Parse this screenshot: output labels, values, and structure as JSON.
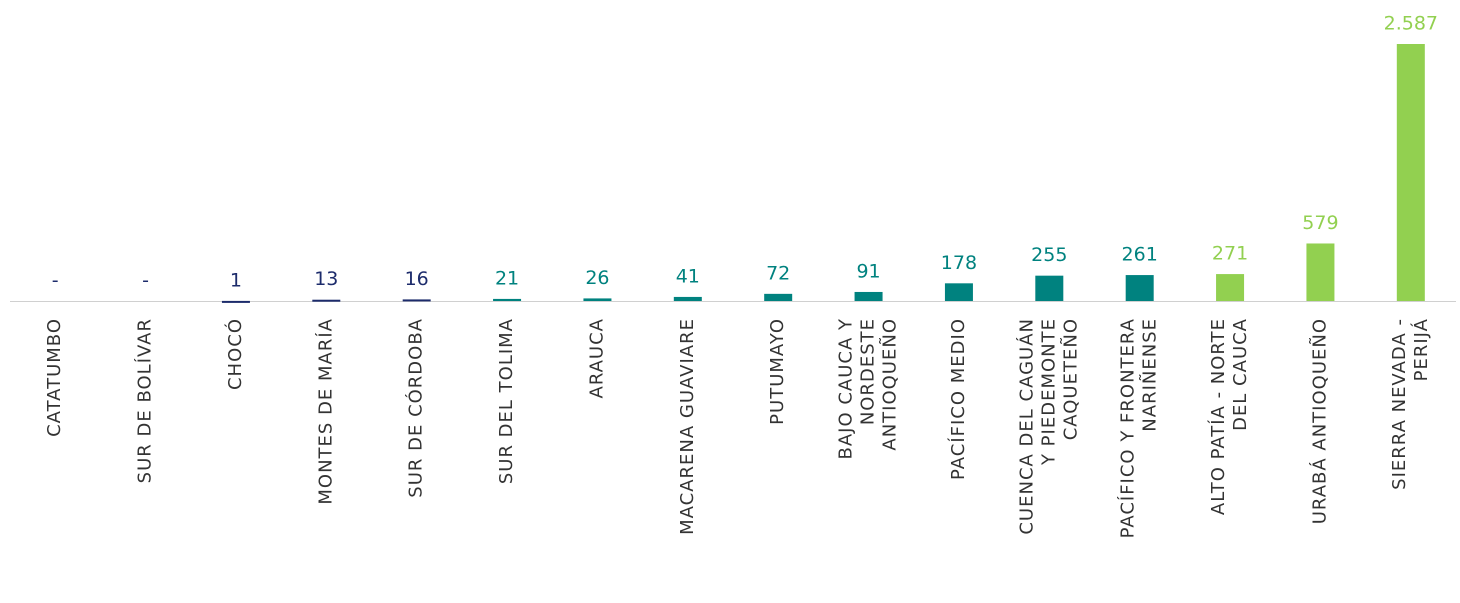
{
  "chart_data": {
    "type": "bar",
    "categories": [
      "CATATUMBO",
      "SUR DE BOLÍVAR",
      "CHOCÓ",
      "MONTES DE MARÍA",
      "SUR DE CÓRDOBA",
      "SUR DEL TOLIMA",
      "ARAUCA",
      "MACARENA GUAVIARE",
      "PUTUMAYO",
      [
        "BAJO CAUCA Y",
        "NORDESTE",
        "ANTIOQUEÑO"
      ],
      "PACÍFICO MEDIO",
      [
        "CUENCA DEL CAGUÁN",
        "Y PIEDEMONTE",
        "CAQUETEÑO"
      ],
      [
        "PACÍFICO Y FRONTERA",
        "NARIÑENSE"
      ],
      [
        "ALTO PATÍA - NORTE",
        "DEL CAUCA"
      ],
      "URABÁ ANTIOQUEÑO",
      [
        "SIERRA NEVADA -",
        "PERIJÁ"
      ]
    ],
    "values": [
      0,
      0,
      1,
      13,
      16,
      21,
      26,
      41,
      72,
      91,
      178,
      255,
      261,
      271,
      579,
      2587
    ],
    "value_labels": [
      "-",
      "-",
      "1",
      "13",
      "16",
      "21",
      "26",
      "41",
      "72",
      "91",
      "178",
      "255",
      "261",
      "271",
      "579",
      "2.587"
    ],
    "colors": [
      "#1c2b6b",
      "#1c2b6b",
      "#1c2b6b",
      "#1c2b6b",
      "#1c2b6b",
      "#00827f",
      "#00827f",
      "#00827f",
      "#00827f",
      "#00827f",
      "#00827f",
      "#00827f",
      "#00827f",
      "#92d050",
      "#92d050",
      "#92d050"
    ]
  }
}
